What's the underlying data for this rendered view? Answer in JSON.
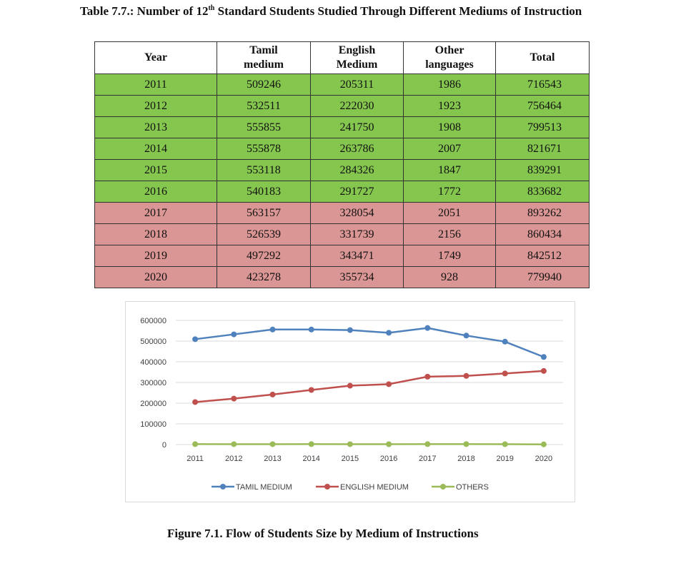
{
  "caption": {
    "prefix": "Table 7.7.: Number of 12",
    "sup": "th",
    "suffix": " Standard Students Studied Through Different Mediums of Instruction"
  },
  "table": {
    "headers": [
      {
        "line1": "Year",
        "line2": ""
      },
      {
        "line1": "Tamil",
        "line2": "medium"
      },
      {
        "line1": "English",
        "line2": "Medium"
      },
      {
        "line1": "Other",
        "line2": "languages"
      },
      {
        "line1": "Total",
        "line2": ""
      }
    ],
    "rows": [
      {
        "year": "2011",
        "tamil": "509246",
        "english": "205311",
        "other": "1986",
        "total": "716543",
        "highlight": "green"
      },
      {
        "year": "2012",
        "tamil": "532511",
        "english": "222030",
        "other": "1923",
        "total": "756464",
        "highlight": "green"
      },
      {
        "year": "2013",
        "tamil": "555855",
        "english": "241750",
        "other": "1908",
        "total": "799513",
        "highlight": "green"
      },
      {
        "year": "2014",
        "tamil": "555878",
        "english": "263786",
        "other": "2007",
        "total": "821671",
        "highlight": "green"
      },
      {
        "year": "2015",
        "tamil": "553118",
        "english": "284326",
        "other": "1847",
        "total": "839291",
        "highlight": "green"
      },
      {
        "year": "2016",
        "tamil": "540183",
        "english": "291727",
        "other": "1772",
        "total": "833682",
        "highlight": "green"
      },
      {
        "year": "2017",
        "tamil": "563157",
        "english": "328054",
        "other": "2051",
        "total": "893262",
        "highlight": "red"
      },
      {
        "year": "2018",
        "tamil": "526539",
        "english": "331739",
        "other": "2156",
        "total": "860434",
        "highlight": "red"
      },
      {
        "year": "2019",
        "tamil": "497292",
        "english": "343471",
        "other": "1749",
        "total": "842512",
        "highlight": "red"
      },
      {
        "year": "2020",
        "tamil": "423278",
        "english": "355734",
        "other": "928",
        "total": "779940",
        "highlight": "red"
      }
    ]
  },
  "chart_data": {
    "type": "line",
    "title": "",
    "xlabel": "",
    "ylabel": "",
    "x": [
      "2011",
      "2012",
      "2013",
      "2014",
      "2015",
      "2016",
      "2017",
      "2018",
      "2019",
      "2020"
    ],
    "ylim": [
      0,
      600000
    ],
    "yticks": [
      0,
      100000,
      200000,
      300000,
      400000,
      500000,
      600000
    ],
    "ytick_labels": [
      "0",
      "100000",
      "200000",
      "300000",
      "400000",
      "500000",
      "600000"
    ],
    "grid": true,
    "legend_position": "bottom",
    "series": [
      {
        "name": "TAMIL MEDIUM",
        "color": "#4f81bd",
        "values": [
          509246,
          532511,
          555855,
          555878,
          553118,
          540183,
          563157,
          526539,
          497292,
          423278
        ]
      },
      {
        "name": "ENGLISH MEDIUM",
        "color": "#c0504d",
        "values": [
          205311,
          222030,
          241750,
          263786,
          284326,
          291727,
          328054,
          331739,
          343471,
          355734
        ]
      },
      {
        "name": "OTHERS",
        "color": "#9bbb59",
        "values": [
          1986,
          1923,
          1908,
          2007,
          1847,
          1772,
          2051,
          2156,
          1749,
          928
        ]
      }
    ]
  },
  "colors": {
    "green_row": "#85c64f",
    "red_row": "#d99694"
  },
  "figure_caption": "Figure 7.1. Flow of Students Size by Medium of Instructions"
}
